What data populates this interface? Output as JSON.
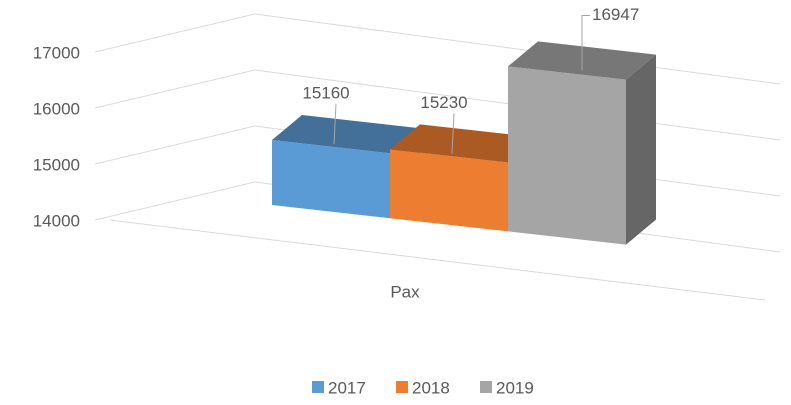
{
  "chart_data": {
    "type": "bar3d",
    "categories": [
      "Pax"
    ],
    "series": [
      {
        "name": "2017",
        "color": "#5b9bd5",
        "values": [
          15160
        ]
      },
      {
        "name": "2018",
        "color": "#ed7d31",
        "values": [
          15230
        ]
      },
      {
        "name": "2019",
        "color": "#a5a5a5",
        "values": [
          16947
        ]
      }
    ],
    "ylim": [
      14000,
      17000
    ],
    "yticks": [
      14000,
      15000,
      16000,
      17000
    ],
    "grid": true,
    "legend": "bottom"
  }
}
